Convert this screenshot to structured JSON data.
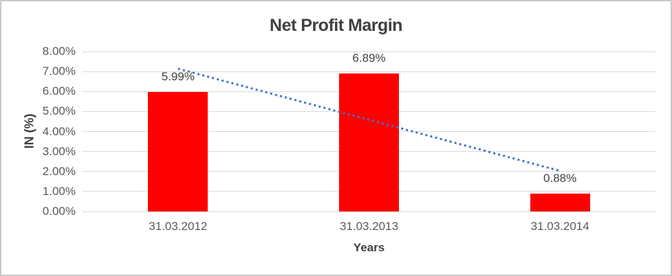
{
  "chart_data": {
    "type": "bar",
    "title": "Net Profit Margin",
    "xlabel": "Years",
    "ylabel": "IN (%)",
    "categories": [
      "31.03.2012",
      "31.03.2013",
      "31.03.2014"
    ],
    "values": [
      5.99,
      6.89,
      0.88
    ],
    "data_labels": [
      "5.99%",
      "6.89%",
      "0.88%"
    ],
    "y_tick_labels": [
      "8.00%",
      "7.00%",
      "6.00%",
      "5.00%",
      "4.00%",
      "3.00%",
      "2.00%",
      "1.00%",
      "0.00%"
    ],
    "ylim": [
      0,
      8
    ],
    "grid": true,
    "legend": "none",
    "bar_color": "#FF0000",
    "gridline_color": "#D9D9D9",
    "trendline": {
      "type": "linear",
      "style": "dotted",
      "color": "#4472C4",
      "start_value": 7.14,
      "end_value": 2.03
    }
  }
}
